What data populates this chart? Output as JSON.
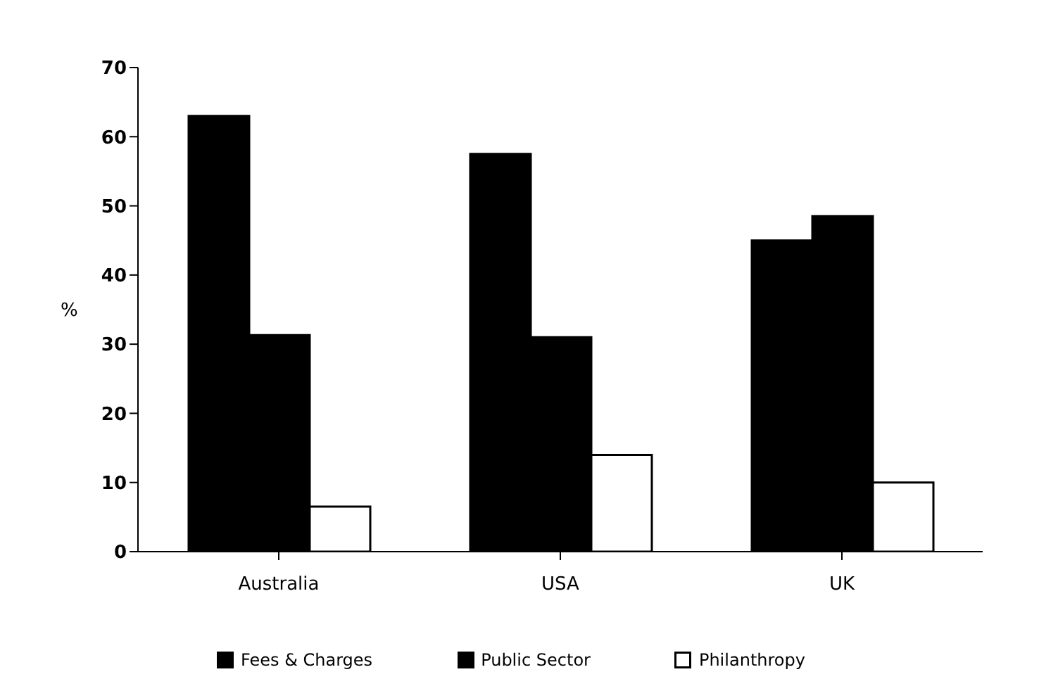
{
  "chart_data": {
    "type": "bar",
    "ylabel": "%",
    "categories": [
      "Australia",
      "USA",
      "UK"
    ],
    "series": [
      {
        "name": "Fees & Charges",
        "color": "#000000",
        "values": [
          63,
          57.5,
          45
        ]
      },
      {
        "name": "Public Sector",
        "color": "#000000",
        "values": [
          31.3,
          31,
          48.5
        ]
      },
      {
        "name": "Philanthropy",
        "color": "#ffffff",
        "values": [
          6.5,
          14,
          10
        ]
      }
    ],
    "ylim": [
      0,
      70
    ],
    "yticks": [
      0,
      10,
      20,
      30,
      40,
      50,
      60,
      70
    ],
    "grid": false,
    "legend": "bottom"
  }
}
